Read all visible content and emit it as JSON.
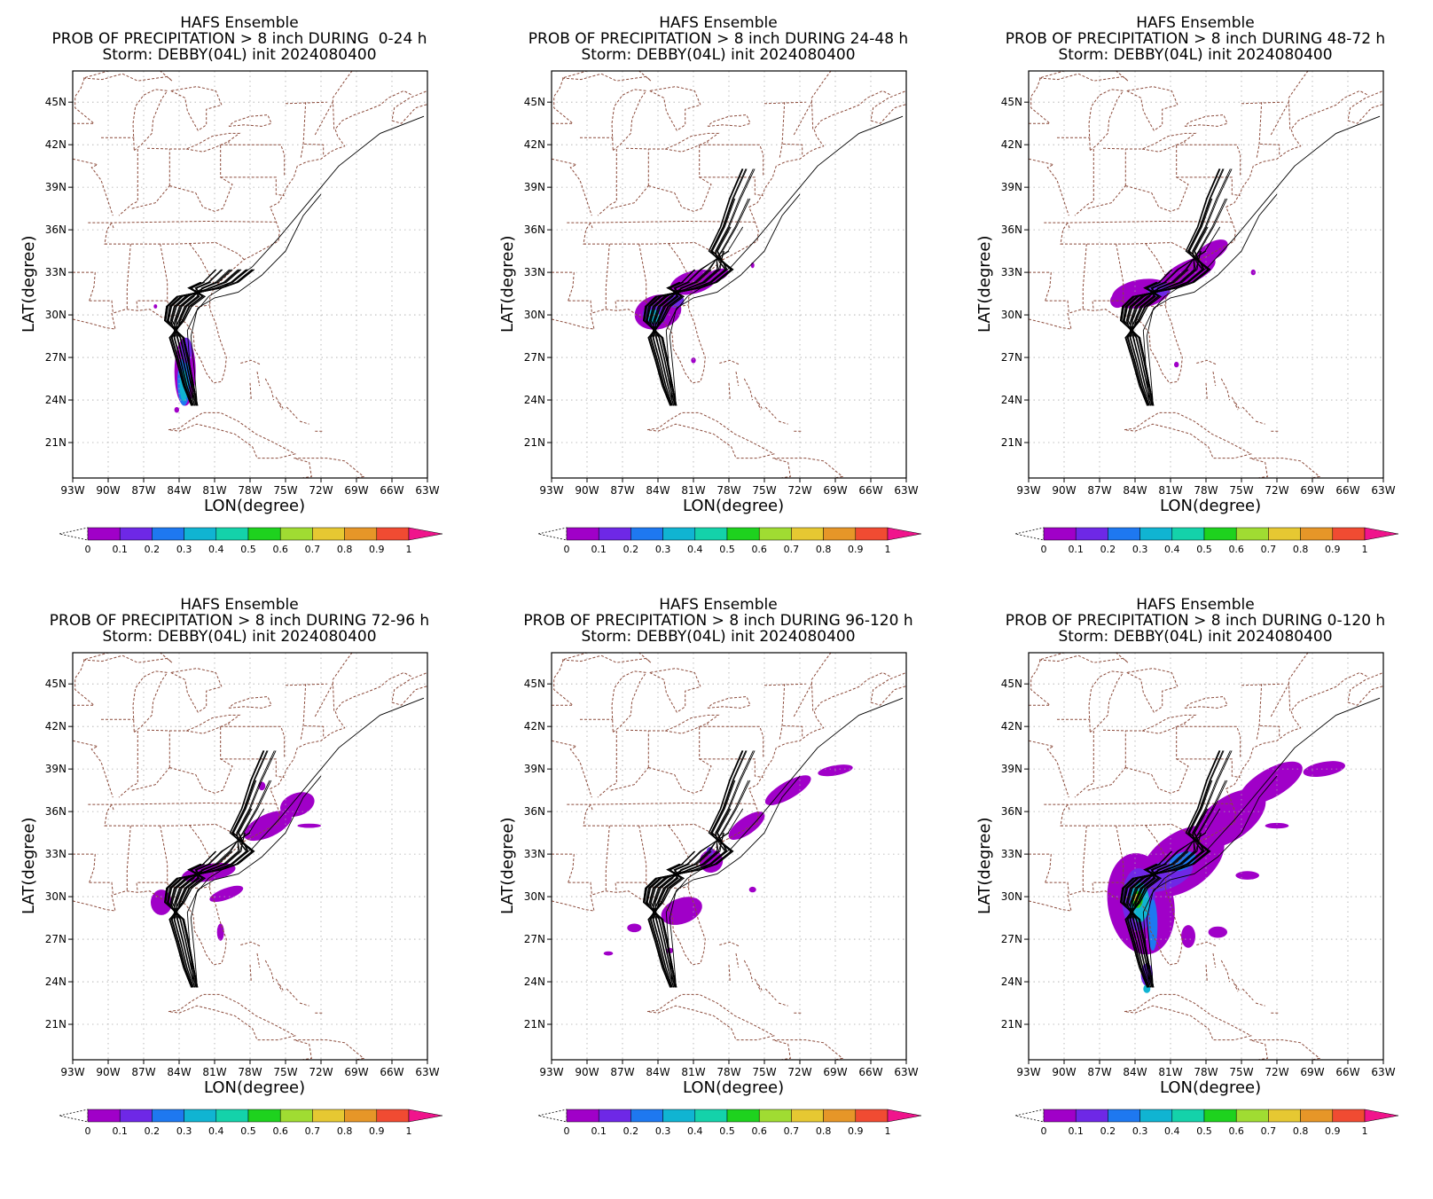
{
  "figure": {
    "colorbar": {
      "labels": [
        "0",
        "0.1",
        "0.2",
        "0.3",
        "0.4",
        "0.5",
        "0.6",
        "0.7",
        "0.8",
        "0.9",
        "1"
      ],
      "colors": [
        "#a000c8",
        "#6e28e6",
        "#1e78f0",
        "#10b4d2",
        "#14d2aa",
        "#1ed21e",
        "#a0dc32",
        "#e6c832",
        "#e69628",
        "#f04b32"
      ],
      "over_color": "#f0148c",
      "under_color": "#ffffff"
    },
    "map_axes": {
      "lon_ticks": [
        "93W",
        "90W",
        "87W",
        "84W",
        "81W",
        "78W",
        "75W",
        "72W",
        "69W",
        "66W",
        "63W"
      ],
      "lat_ticks": [
        "21N",
        "24N",
        "27N",
        "30N",
        "33N",
        "36N",
        "39N",
        "42N",
        "45N"
      ],
      "xlabel": "LON(degree)",
      "ylabel": "LAT(degree)"
    },
    "colors": {
      "boundaries": "#8b4a3a",
      "grid": "#aaaaaa",
      "tracks": "#000000",
      "low_prob": "#a000c8"
    },
    "panels": [
      {
        "title1": "HAFS Ensemble",
        "title2": "PROB OF PRECIPITATION > 8 inch DURING  0-24 h",
        "title3": "Storm: DEBBY(04L) init 2024080400",
        "track_extent": "short",
        "precip": "f1"
      },
      {
        "title1": "HAFS Ensemble",
        "title2": "PROB OF PRECIPITATION > 8 inch DURING 24-48 h",
        "title3": "Storm: DEBBY(04L) init 2024080400",
        "track_extent": "full",
        "precip": "f2"
      },
      {
        "title1": "HAFS Ensemble",
        "title2": "PROB OF PRECIPITATION > 8 inch DURING 48-72 h",
        "title3": "Storm: DEBBY(04L) init 2024080400",
        "track_extent": "full",
        "precip": "f3"
      },
      {
        "title1": "HAFS Ensemble",
        "title2": "PROB OF PRECIPITATION > 8 inch DURING 72-96 h",
        "title3": "Storm: DEBBY(04L) init 2024080400",
        "track_extent": "full",
        "precip": "f4"
      },
      {
        "title1": "HAFS Ensemble",
        "title2": "PROB OF PRECIPITATION > 8 inch DURING 96-120 h",
        "title3": "Storm: DEBBY(04L) init 2024080400",
        "track_extent": "full",
        "precip": "f5"
      },
      {
        "title1": "HAFS Ensemble",
        "title2": "PROB OF PRECIPITATION > 8 inch DURING 0-120 h",
        "title3": "Storm: DEBBY(04L) init 2024080400",
        "track_extent": "full",
        "precip": "f6"
      }
    ]
  }
}
